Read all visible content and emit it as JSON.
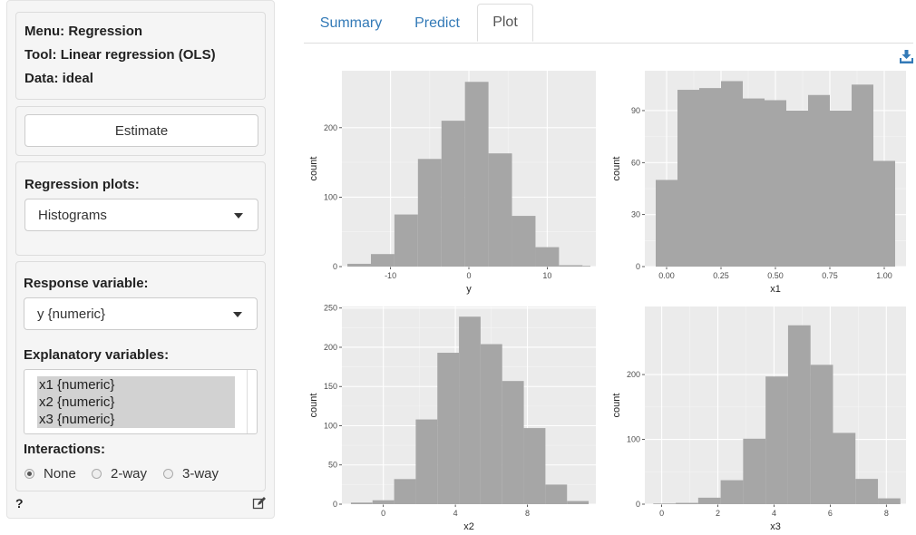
{
  "sidebar": {
    "info": {
      "menu": "Menu: Regression",
      "tool": "Tool: Linear regression (OLS)",
      "data": "Data: ideal"
    },
    "estimate_label": "Estimate",
    "regression_plots_label": "Regression plots:",
    "regression_plots_value": "Histograms",
    "response_label": "Response variable:",
    "response_value": "y {numeric}",
    "explanatory_label": "Explanatory variables:",
    "explanatory_options": [
      "x1 {numeric}",
      "x2 {numeric}",
      "x3 {numeric}"
    ],
    "interactions_label": "Interactions:",
    "interactions": [
      {
        "label": "None",
        "checked": true
      },
      {
        "label": "2-way",
        "checked": false
      },
      {
        "label": "3-way",
        "checked": false
      }
    ],
    "help": "?"
  },
  "tabs": [
    {
      "label": "Summary",
      "active": false
    },
    {
      "label": "Predict",
      "active": false
    },
    {
      "label": "Plot",
      "active": true
    }
  ],
  "colors": {
    "panel_bg": "#ebebeb",
    "bar": "#a6a6a6",
    "link": "#337ab7"
  },
  "chart_data": [
    {
      "type": "bar",
      "xlabel": "y",
      "ylabel": "count",
      "x_ticks": [
        {
          "v": -10,
          "label": "-10"
        },
        {
          "v": 0,
          "label": "0"
        },
        {
          "v": 10,
          "label": "10"
        }
      ],
      "y_ticks": [
        {
          "v": 0,
          "label": "0"
        },
        {
          "v": 100,
          "label": "100"
        },
        {
          "v": 200,
          "label": "200"
        }
      ],
      "xlim": [
        -16.2,
        16.2
      ],
      "ylim": [
        0,
        282
      ],
      "bins": [
        {
          "x0": -15.5,
          "x1": -12.5,
          "y": 4
        },
        {
          "x0": -12.5,
          "x1": -9.5,
          "y": 18
        },
        {
          "x0": -9.5,
          "x1": -6.5,
          "y": 75
        },
        {
          "x0": -6.5,
          "x1": -3.5,
          "y": 155
        },
        {
          "x0": -3.5,
          "x1": -0.5,
          "y": 210
        },
        {
          "x0": -0.5,
          "x1": 2.5,
          "y": 266
        },
        {
          "x0": 2.5,
          "x1": 5.5,
          "y": 163
        },
        {
          "x0": 5.5,
          "x1": 8.5,
          "y": 73
        },
        {
          "x0": 8.5,
          "x1": 11.5,
          "y": 28
        },
        {
          "x0": 11.5,
          "x1": 14.5,
          "y": 2
        },
        {
          "x0": 14.5,
          "x1": 15.5,
          "y": 1
        }
      ]
    },
    {
      "type": "bar",
      "xlabel": "x1",
      "ylabel": "count",
      "x_ticks": [
        {
          "v": 0,
          "label": "0.00"
        },
        {
          "v": 0.25,
          "label": "0.25"
        },
        {
          "v": 0.5,
          "label": "0.50"
        },
        {
          "v": 0.75,
          "label": "0.75"
        },
        {
          "v": 1,
          "label": "1.00"
        }
      ],
      "y_ticks": [
        {
          "v": 0,
          "label": "0"
        },
        {
          "v": 30,
          "label": "30"
        },
        {
          "v": 60,
          "label": "60"
        },
        {
          "v": 90,
          "label": "90"
        }
      ],
      "xlim": [
        -0.1,
        1.1
      ],
      "ylim": [
        0,
        113
      ],
      "bins": [
        {
          "x0": -0.05,
          "x1": 0.05,
          "y": 50
        },
        {
          "x0": 0.05,
          "x1": 0.15,
          "y": 102
        },
        {
          "x0": 0.15,
          "x1": 0.25,
          "y": 103
        },
        {
          "x0": 0.25,
          "x1": 0.35,
          "y": 107
        },
        {
          "x0": 0.35,
          "x1": 0.45,
          "y": 97
        },
        {
          "x0": 0.45,
          "x1": 0.55,
          "y": 96
        },
        {
          "x0": 0.55,
          "x1": 0.65,
          "y": 90
        },
        {
          "x0": 0.65,
          "x1": 0.75,
          "y": 99
        },
        {
          "x0": 0.75,
          "x1": 0.85,
          "y": 90
        },
        {
          "x0": 0.85,
          "x1": 0.95,
          "y": 105
        },
        {
          "x0": 0.95,
          "x1": 1.05,
          "y": 61
        }
      ]
    },
    {
      "type": "bar",
      "xlabel": "x2",
      "ylabel": "count",
      "x_ticks": [
        {
          "v": 0,
          "label": "0"
        },
        {
          "v": 4,
          "label": "4"
        },
        {
          "v": 8,
          "label": "8"
        }
      ],
      "y_ticks": [
        {
          "v": 0,
          "label": "0"
        },
        {
          "v": 50,
          "label": "50"
        },
        {
          "v": 100,
          "label": "100"
        },
        {
          "v": 150,
          "label": "150"
        },
        {
          "v": 200,
          "label": "200"
        },
        {
          "v": 250,
          "label": "250"
        }
      ],
      "xlim": [
        -2.3,
        11.8
      ],
      "ylim": [
        0,
        252
      ],
      "bins": [
        {
          "x0": -1.8,
          "x1": -0.6,
          "y": 2
        },
        {
          "x0": -0.6,
          "x1": 0.6,
          "y": 5
        },
        {
          "x0": 0.6,
          "x1": 1.8,
          "y": 32
        },
        {
          "x0": 1.8,
          "x1": 3.0,
          "y": 108
        },
        {
          "x0": 3.0,
          "x1": 4.2,
          "y": 193
        },
        {
          "x0": 4.2,
          "x1": 5.4,
          "y": 239
        },
        {
          "x0": 5.4,
          "x1": 6.6,
          "y": 204
        },
        {
          "x0": 6.6,
          "x1": 7.8,
          "y": 157
        },
        {
          "x0": 7.8,
          "x1": 9.0,
          "y": 97
        },
        {
          "x0": 9.0,
          "x1": 10.2,
          "y": 25
        },
        {
          "x0": 10.2,
          "x1": 11.4,
          "y": 4
        }
      ]
    },
    {
      "type": "bar",
      "xlabel": "x3",
      "ylabel": "count",
      "x_ticks": [
        {
          "v": 0,
          "label": "0"
        },
        {
          "v": 2,
          "label": "2"
        },
        {
          "v": 4,
          "label": "4"
        },
        {
          "v": 6,
          "label": "6"
        },
        {
          "v": 8,
          "label": "8"
        }
      ],
      "y_ticks": [
        {
          "v": 0,
          "label": "0"
        },
        {
          "v": 100,
          "label": "100"
        },
        {
          "v": 200,
          "label": "200"
        }
      ],
      "xlim": [
        -0.6,
        8.7
      ],
      "ylim": [
        0,
        305
      ],
      "bins": [
        {
          "x0": -0.3,
          "x1": 0.5,
          "y": 1
        },
        {
          "x0": 0.5,
          "x1": 1.3,
          "y": 2
        },
        {
          "x0": 1.3,
          "x1": 2.1,
          "y": 10
        },
        {
          "x0": 2.1,
          "x1": 2.9,
          "y": 37
        },
        {
          "x0": 2.9,
          "x1": 3.7,
          "y": 101
        },
        {
          "x0": 3.7,
          "x1": 4.5,
          "y": 197
        },
        {
          "x0": 4.5,
          "x1": 5.3,
          "y": 276
        },
        {
          "x0": 5.3,
          "x1": 6.1,
          "y": 215
        },
        {
          "x0": 6.1,
          "x1": 6.9,
          "y": 110
        },
        {
          "x0": 6.9,
          "x1": 7.7,
          "y": 39
        },
        {
          "x0": 7.7,
          "x1": 8.5,
          "y": 9
        }
      ]
    }
  ]
}
